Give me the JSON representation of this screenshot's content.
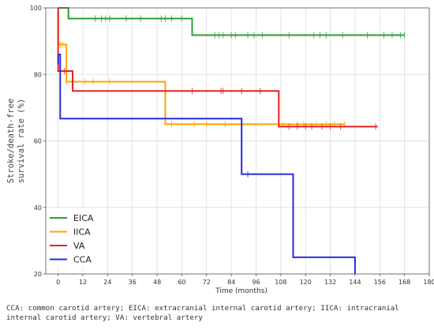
{
  "chart_data": {
    "type": "line",
    "subtype": "kaplan-meier-step",
    "xlabel": "Time (months)",
    "ylabel_lines": [
      "Stroke/death-free",
      "survival rate (%)"
    ],
    "xlim": [
      -6,
      180
    ],
    "ylim": [
      20,
      100
    ],
    "xticks": [
      0,
      12,
      24,
      36,
      48,
      60,
      72,
      84,
      96,
      108,
      120,
      132,
      144,
      156,
      168,
      180
    ],
    "yticks": [
      20,
      40,
      60,
      80,
      100
    ],
    "grid": true,
    "legend_position": "bottom-left",
    "series": [
      {
        "name": "EICA",
        "color": "#2ca02c",
        "steps": [
          [
            0,
            100
          ],
          [
            5,
            96.8
          ],
          [
            65,
            91.8
          ],
          [
            168,
            91.8
          ]
        ],
        "censored": [
          18,
          21,
          23,
          25,
          33,
          40,
          50,
          52,
          55,
          60,
          76,
          78,
          80,
          84,
          86,
          92,
          95,
          99,
          112,
          124,
          127,
          130,
          138,
          150,
          158,
          162,
          166,
          168
        ]
      },
      {
        "name": "IICA",
        "color": "#ffa500",
        "steps": [
          [
            0,
            100
          ],
          [
            0,
            89
          ],
          [
            4,
            77.8
          ],
          [
            52,
            65
          ],
          [
            139,
            65
          ]
        ],
        "censored": [
          1,
          2,
          4,
          13,
          17,
          25,
          55,
          66,
          72,
          81,
          89,
          109,
          116,
          119,
          125,
          130,
          134,
          139
        ]
      },
      {
        "name": "VA",
        "color": "#e32222",
        "steps": [
          [
            0,
            100
          ],
          [
            0,
            81
          ],
          [
            7,
            75
          ],
          [
            107,
            64.3
          ],
          [
            155,
            64.3
          ]
        ],
        "censored": [
          3,
          65,
          79,
          80,
          89,
          98,
          112,
          116,
          120,
          123,
          128,
          132,
          137,
          154
        ]
      },
      {
        "name": "CCA",
        "color": "#2a2ae0",
        "steps": [
          [
            0,
            83
          ],
          [
            0,
            86
          ],
          [
            1,
            66.7
          ],
          [
            89,
            50
          ],
          [
            114,
            25
          ],
          [
            144,
            25
          ],
          [
            144,
            20
          ]
        ],
        "censored": [
          92
        ]
      }
    ]
  },
  "caption": "CCA: common carotid artery; EICA: extracranial internal carotid artery; IICA: intracranial internal carotid artery; VA: vertebral artery"
}
